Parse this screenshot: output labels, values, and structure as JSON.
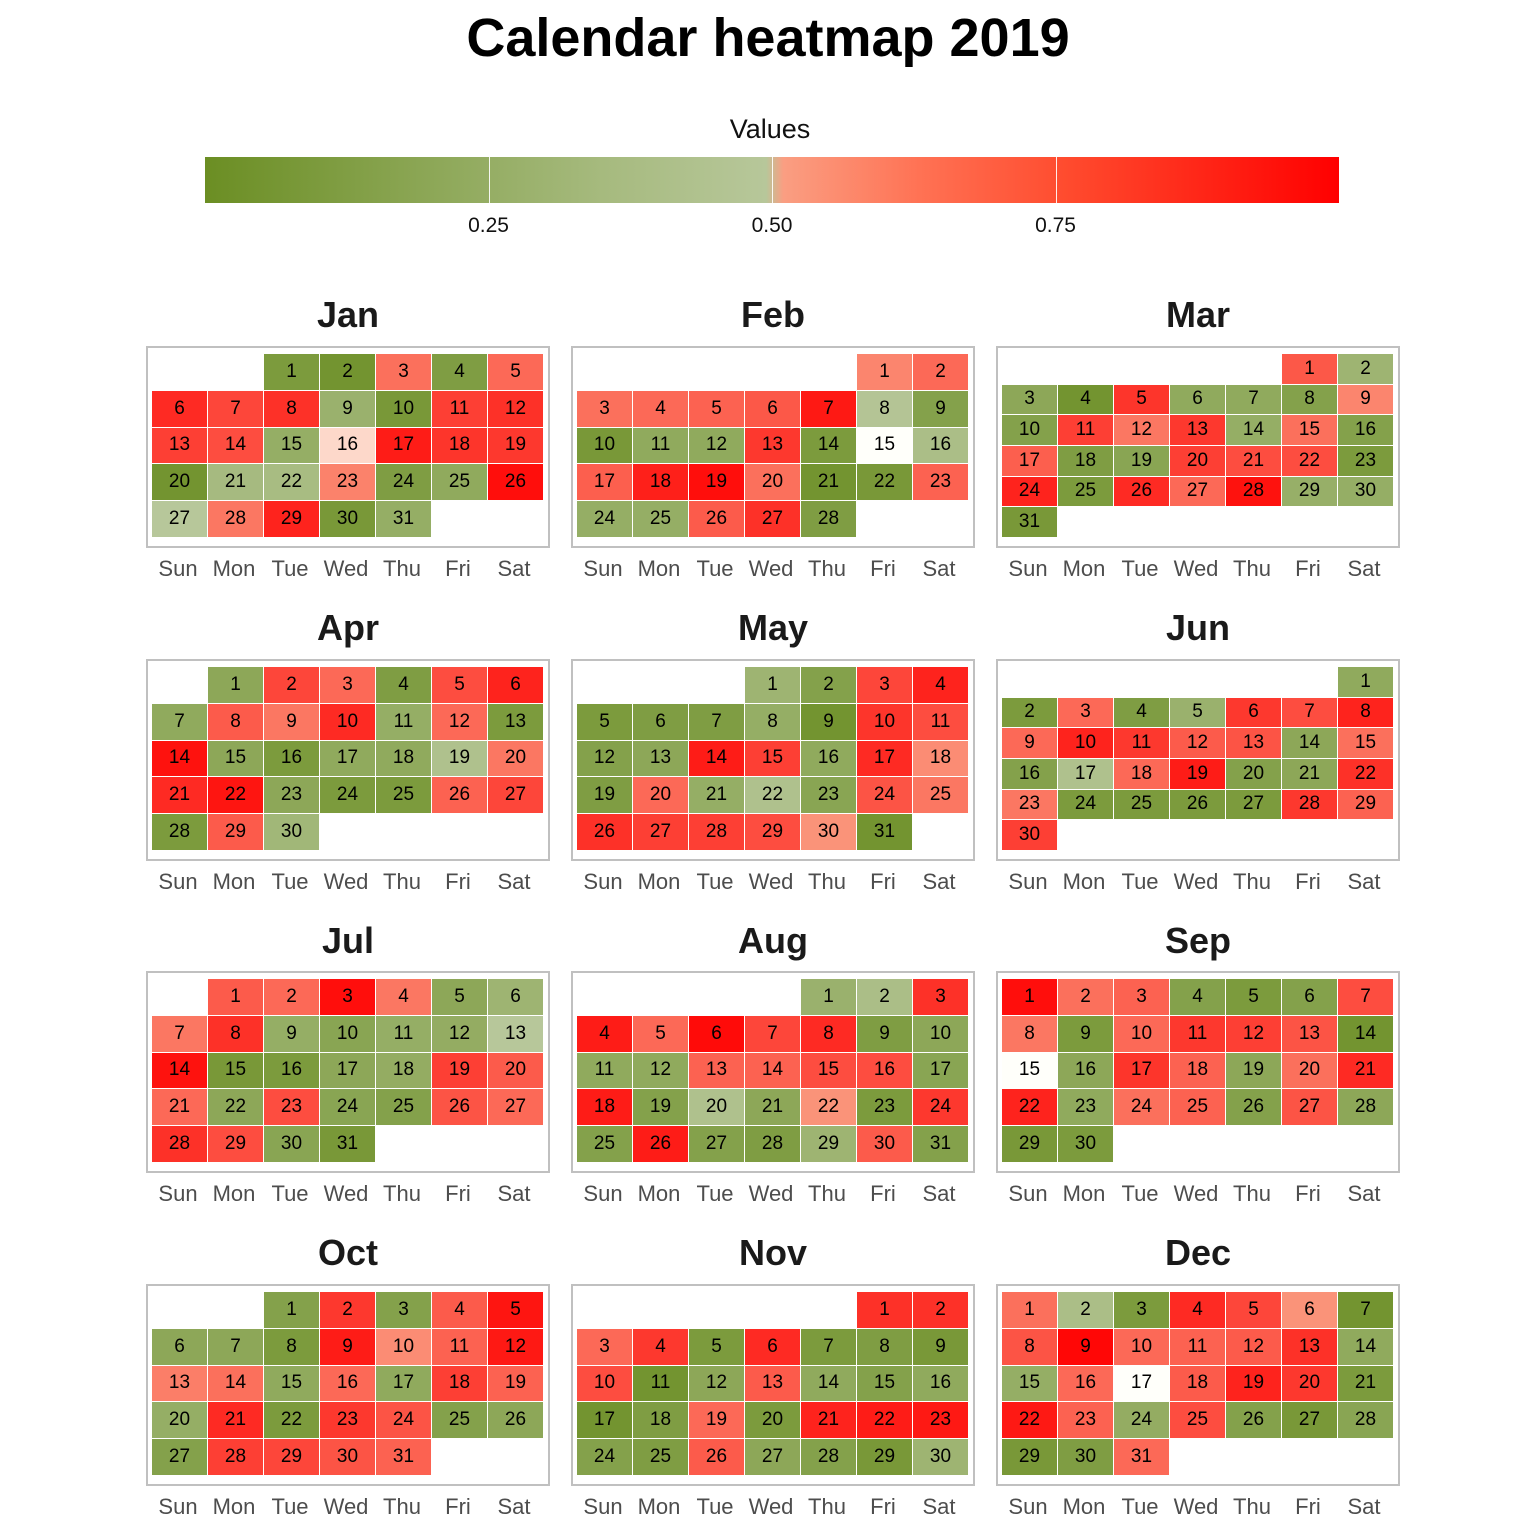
{
  "chart_data": {
    "type": "heatmap",
    "title": "Calendar heatmap 2019",
    "year": 2019,
    "legend": {
      "title": "Values",
      "ticks": [
        0.25,
        0.5,
        0.75
      ],
      "tick_labels": [
        "0.25",
        "0.50",
        "0.75"
      ],
      "range": [
        0,
        1
      ],
      "colors": {
        "low": "#6b8e23",
        "mid_low": "#b7c79a",
        "mid": "#fffffa",
        "mid_high": "#fa9e82",
        "high": "#ff0000"
      }
    },
    "weekdays": [
      "Sun",
      "Mon",
      "Tue",
      "Wed",
      "Thu",
      "Fri",
      "Sat"
    ],
    "months": [
      {
        "name": "Jan",
        "start_weekday": 2,
        "values": [
          0.1,
          0.05,
          0.68,
          0.12,
          0.7,
          0.88,
          0.8,
          0.86,
          0.28,
          0.08,
          0.82,
          0.86,
          0.82,
          0.78,
          0.25,
          0.52,
          0.92,
          0.85,
          0.84,
          0.05,
          0.35,
          0.36,
          0.63,
          0.12,
          0.22,
          0.96,
          0.45,
          0.66,
          0.9,
          0.08,
          0.25
        ]
      },
      {
        "name": "Feb",
        "start_weekday": 5,
        "values": [
          0.62,
          0.7,
          0.68,
          0.7,
          0.72,
          0.75,
          0.93,
          0.43,
          0.15,
          0.08,
          0.22,
          0.22,
          0.84,
          0.1,
          0.5,
          0.38,
          0.73,
          0.91,
          0.96,
          0.68,
          0.05,
          0.08,
          0.72,
          0.25,
          0.25,
          0.74,
          0.86,
          0.12
        ]
      },
      {
        "name": "Mar",
        "start_weekday": 5,
        "values": [
          0.75,
          0.3,
          0.2,
          0.05,
          0.85,
          0.22,
          0.22,
          0.15,
          0.62,
          0.15,
          0.82,
          0.66,
          0.84,
          0.25,
          0.68,
          0.15,
          0.73,
          0.12,
          0.18,
          0.82,
          0.78,
          0.78,
          0.1,
          0.9,
          0.1,
          0.88,
          0.7,
          0.95,
          0.26,
          0.25,
          0.08
        ]
      },
      {
        "name": "Apr",
        "start_weekday": 1,
        "values": [
          0.2,
          0.8,
          0.7,
          0.12,
          0.78,
          0.9,
          0.22,
          0.74,
          0.66,
          0.88,
          0.25,
          0.7,
          0.1,
          0.95,
          0.2,
          0.1,
          0.22,
          0.22,
          0.4,
          0.66,
          0.88,
          0.94,
          0.2,
          0.1,
          0.1,
          0.72,
          0.8,
          0.1,
          0.74,
          0.32
        ]
      },
      {
        "name": "May",
        "start_weekday": 3,
        "values": [
          0.3,
          0.15,
          0.8,
          0.9,
          0.1,
          0.12,
          0.12,
          0.25,
          0.05,
          0.85,
          0.78,
          0.15,
          0.2,
          0.92,
          0.82,
          0.22,
          0.88,
          0.6,
          0.12,
          0.7,
          0.25,
          0.4,
          0.18,
          0.76,
          0.66,
          0.86,
          0.82,
          0.82,
          0.78,
          0.58,
          0.05
        ]
      },
      {
        "name": "Jun",
        "start_weekday": 6,
        "values": [
          0.22,
          0.1,
          0.7,
          0.12,
          0.28,
          0.84,
          0.78,
          0.9,
          0.7,
          0.9,
          0.84,
          0.74,
          0.76,
          0.2,
          0.68,
          0.15,
          0.4,
          0.7,
          0.92,
          0.15,
          0.2,
          0.86,
          0.66,
          0.1,
          0.1,
          0.1,
          0.1,
          0.84,
          0.72,
          0.82
        ]
      },
      {
        "name": "Jul",
        "start_weekday": 1,
        "values": [
          0.74,
          0.7,
          0.96,
          0.66,
          0.2,
          0.3,
          0.66,
          0.86,
          0.25,
          0.18,
          0.25,
          0.24,
          0.45,
          0.95,
          0.08,
          0.1,
          0.2,
          0.24,
          0.82,
          0.74,
          0.7,
          0.2,
          0.78,
          0.18,
          0.15,
          0.76,
          0.7,
          0.86,
          0.78,
          0.18,
          0.08
        ]
      },
      {
        "name": "Aug",
        "start_weekday": 4,
        "values": [
          0.28,
          0.38,
          0.86,
          0.92,
          0.7,
          0.97,
          0.8,
          0.88,
          0.12,
          0.2,
          0.22,
          0.22,
          0.72,
          0.72,
          0.78,
          0.78,
          0.18,
          0.92,
          0.15,
          0.4,
          0.2,
          0.58,
          0.1,
          0.84,
          0.15,
          0.92,
          0.15,
          0.12,
          0.3,
          0.74,
          0.15
        ]
      },
      {
        "name": "Sep",
        "start_weekday": 0,
        "values": [
          0.96,
          0.68,
          0.72,
          0.15,
          0.1,
          0.15,
          0.78,
          0.66,
          0.1,
          0.7,
          0.84,
          0.82,
          0.76,
          0.05,
          0.5,
          0.2,
          0.85,
          0.72,
          0.2,
          0.68,
          0.88,
          0.9,
          0.22,
          0.68,
          0.72,
          0.15,
          0.76,
          0.2,
          0.08,
          0.1
        ]
      },
      {
        "name": "Oct",
        "start_weekday": 2,
        "values": [
          0.15,
          0.84,
          0.15,
          0.74,
          0.94,
          0.2,
          0.2,
          0.1,
          0.92,
          0.6,
          0.72,
          0.93,
          0.64,
          0.68,
          0.22,
          0.7,
          0.22,
          0.82,
          0.72,
          0.25,
          0.88,
          0.1,
          0.84,
          0.76,
          0.15,
          0.2,
          0.15,
          0.82,
          0.8,
          0.76,
          0.72
        ]
      },
      {
        "name": "Nov",
        "start_weekday": 5,
        "values": [
          0.86,
          0.86,
          0.7,
          0.84,
          0.1,
          0.88,
          0.1,
          0.12,
          0.08,
          0.78,
          0.05,
          0.2,
          0.74,
          0.22,
          0.15,
          0.22,
          0.05,
          0.12,
          0.7,
          0.1,
          0.9,
          0.92,
          0.93,
          0.15,
          0.12,
          0.74,
          0.2,
          0.15,
          0.08,
          0.3
        ]
      },
      {
        "name": "Dec",
        "start_weekday": 0,
        "values": [
          0.68,
          0.38,
          0.1,
          0.88,
          0.8,
          0.58,
          0.05,
          0.76,
          0.98,
          0.7,
          0.72,
          0.74,
          0.86,
          0.22,
          0.25,
          0.7,
          0.5,
          0.74,
          0.9,
          0.84,
          0.1,
          0.93,
          0.72,
          0.24,
          0.78,
          0.15,
          0.08,
          0.18,
          0.08,
          0.12,
          0.7
        ]
      }
    ]
  }
}
